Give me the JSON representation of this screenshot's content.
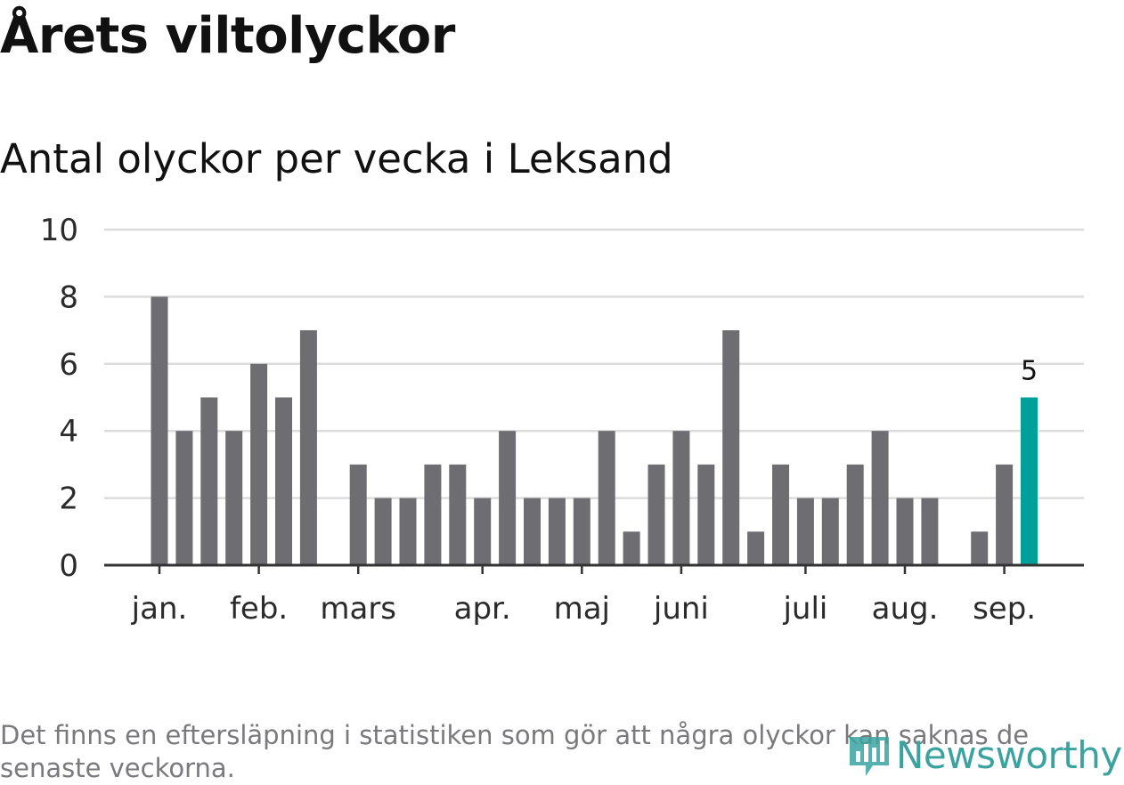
{
  "title": "Årets viltolyckor",
  "subtitle": "Antal olyckor per vecka i Leksand",
  "footnote": "Det finns en eftersläpning i statistiken som gör att några olyckor kan saknas de senaste veckorna.",
  "logo": {
    "text": "Newsworthy",
    "icon": "newsworthy-logo-icon",
    "color": "#3aa3a0"
  },
  "chart_data": {
    "type": "bar",
    "title": "Årets viltolyckor",
    "subtitle": "Antal olyckor per vecka i Leksand",
    "xlabel": "",
    "ylabel": "",
    "ylim": [
      0,
      10
    ],
    "yticks": [
      0,
      2,
      4,
      6,
      8,
      10
    ],
    "grid": true,
    "x_start": 1,
    "x_end": 36,
    "month_labels": [
      {
        "label": "jan.",
        "x": 1
      },
      {
        "label": "feb.",
        "x": 5
      },
      {
        "label": "mars",
        "x": 9
      },
      {
        "label": "apr.",
        "x": 14
      },
      {
        "label": "maj",
        "x": 18
      },
      {
        "label": "juni",
        "x": 22
      },
      {
        "label": "juli",
        "x": 27
      },
      {
        "label": "aug.",
        "x": 31
      },
      {
        "label": "sep.",
        "x": 35
      }
    ],
    "x": [
      1,
      2,
      3,
      4,
      5,
      6,
      7,
      8,
      9,
      10,
      11,
      12,
      13,
      14,
      15,
      16,
      17,
      18,
      19,
      20,
      21,
      22,
      23,
      24,
      25,
      26,
      27,
      28,
      29,
      30,
      31,
      32,
      33,
      34,
      35,
      36
    ],
    "values": [
      8,
      4,
      5,
      4,
      6,
      5,
      7,
      0,
      3,
      2,
      2,
      3,
      3,
      2,
      4,
      2,
      2,
      2,
      4,
      1,
      3,
      4,
      3,
      7,
      1,
      3,
      2,
      2,
      3,
      4,
      2,
      2,
      0,
      1,
      3,
      5
    ],
    "highlight_index": 35,
    "bar_color": "#6e6d72",
    "highlight_color": "#00a09a",
    "data_labels": [
      {
        "index": 35,
        "text": "5"
      }
    ]
  }
}
